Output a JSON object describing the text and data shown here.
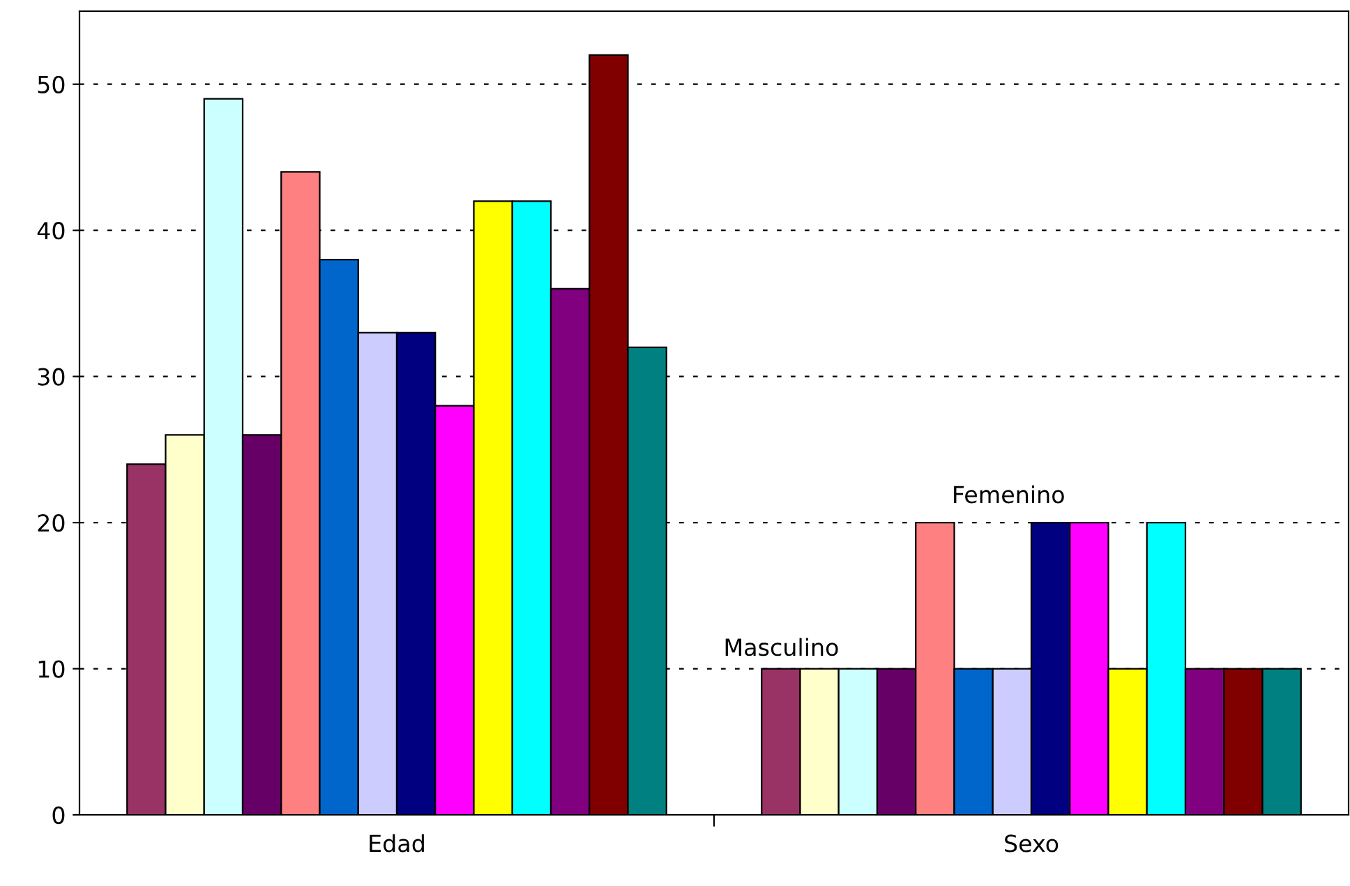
{
  "chart_data": {
    "type": "bar",
    "categories": [
      "Edad",
      "Sexo"
    ],
    "series": [
      {
        "color": "#993366",
        "values": [
          24,
          10
        ]
      },
      {
        "color": "#ffffcc",
        "values": [
          26,
          10
        ]
      },
      {
        "color": "#ccffff",
        "values": [
          49,
          10
        ]
      },
      {
        "color": "#660066",
        "values": [
          26,
          10
        ]
      },
      {
        "color": "#ff8080",
        "values": [
          44,
          20
        ]
      },
      {
        "color": "#0066cc",
        "values": [
          38,
          10
        ]
      },
      {
        "color": "#ccccff",
        "values": [
          33,
          10
        ]
      },
      {
        "color": "#000080",
        "values": [
          33,
          20
        ]
      },
      {
        "color": "#ff00ff",
        "values": [
          28,
          20
        ]
      },
      {
        "color": "#ffff00",
        "values": [
          42,
          10
        ]
      },
      {
        "color": "#00ffff",
        "values": [
          42,
          20
        ]
      },
      {
        "color": "#800080",
        "values": [
          36,
          10
        ]
      },
      {
        "color": "#800000",
        "values": [
          52,
          10
        ]
      },
      {
        "color": "#008080",
        "values": [
          32,
          10
        ]
      }
    ],
    "ylim": [
      0,
      55
    ],
    "yticks": [
      0,
      10,
      20,
      30,
      40,
      50
    ],
    "grid": true,
    "legend": false,
    "annotations": [
      "Masculino",
      "Femenino"
    ]
  }
}
